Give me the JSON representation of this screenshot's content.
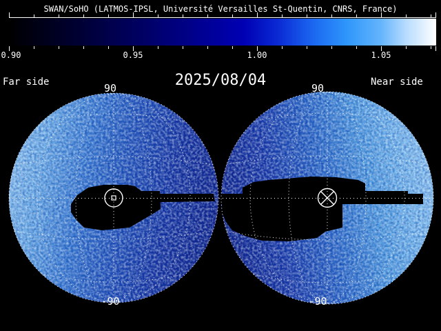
{
  "title": "SWAN/SoHO (LATMOS-IPSL, Université Versailles St-Quentin, CNRS, France)",
  "date": "2025/08/04",
  "panels": {
    "far": {
      "label": "Far side",
      "pole_top": "90",
      "pole_bottom": "-90",
      "marker": "circled-square-marker"
    },
    "near": {
      "label": "Near side",
      "pole_top": "90",
      "pole_bottom": "-90",
      "marker": "circled-cross-marker"
    }
  },
  "colorbar": {
    "tick_labels": [
      "0.90",
      "0.95",
      "1.00",
      "1.05"
    ],
    "min": 0.9,
    "max": 1.07,
    "minor_step": 0.01,
    "gradient_stops": [
      [
        "#000000",
        0
      ],
      [
        "#000030",
        15
      ],
      [
        "#000060",
        30
      ],
      [
        "#000092",
        45
      ],
      [
        "#0000b4",
        55
      ],
      [
        "#0a2ad4",
        63
      ],
      [
        "#1b66f0",
        71
      ],
      [
        "#2e96fb",
        79
      ],
      [
        "#64b4fc",
        87
      ],
      [
        "#b8dcfe",
        93
      ],
      [
        "#ffffff",
        100
      ]
    ]
  },
  "colors": {
    "background": "#000000",
    "text": "#ffffff",
    "graticule": "#ffffff",
    "mask": "#000000",
    "far_west_limb": "#93c8f3",
    "far_east_limb": "#0f1c84",
    "near_west_limb": "#101d85",
    "near_east_limb": "#97ccf5"
  },
  "chart_data": {
    "type": "heatmap",
    "title": "SWAN/SoHO (LATMOS-IPSL, Université Versailles St-Quentin, CNRS, France)",
    "date": "2025/08/04",
    "colorbar": {
      "orientation": "horizontal",
      "range": [
        0.9,
        1.07
      ],
      "major_ticks": [
        0.9,
        0.95,
        1.0,
        1.05
      ],
      "minor_tick_step": 0.01,
      "colormap": [
        "#000000",
        "#000060",
        "#0000b4",
        "#1b66f0",
        "#2e96fb",
        "#64b4fc",
        "#ffffff"
      ]
    },
    "panels": [
      {
        "label": "Far side",
        "projection": "hemisphere-sky-map",
        "pole_labels": [
          "90",
          "-90"
        ],
        "center_marker": "circled-square",
        "masked_region": "black no-data band around map center/equator"
      },
      {
        "label": "Near side",
        "projection": "hemisphere-sky-map",
        "pole_labels": [
          "90",
          "-90"
        ],
        "center_marker": "circled-cross",
        "masked_region": "wide black no-data band across equator"
      }
    ],
    "grid": "dotted white graticule, meridians and parallels, equator line spanning both hemispheres",
    "legend_position": "top"
  }
}
